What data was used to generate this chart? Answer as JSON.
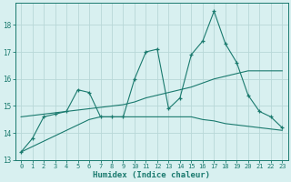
{
  "xlabel": "Humidex (Indice chaleur)",
  "x": [
    0,
    1,
    2,
    3,
    4,
    5,
    6,
    7,
    8,
    9,
    10,
    11,
    12,
    13,
    14,
    15,
    16,
    17,
    18,
    19,
    20,
    21,
    22,
    23
  ],
  "line1": [
    13.3,
    13.8,
    14.6,
    14.7,
    14.8,
    15.6,
    15.5,
    14.6,
    14.6,
    14.6,
    16.0,
    17.0,
    17.1,
    14.9,
    15.3,
    16.9,
    17.4,
    18.5,
    17.3,
    16.6,
    15.4,
    14.8,
    14.6,
    14.2
  ],
  "line2": [
    14.6,
    14.65,
    14.7,
    14.75,
    14.8,
    14.85,
    14.9,
    14.95,
    15.0,
    15.05,
    15.15,
    15.3,
    15.4,
    15.5,
    15.6,
    15.7,
    15.85,
    16.0,
    16.1,
    16.2,
    16.3,
    16.3,
    16.3,
    16.3
  ],
  "line3": [
    13.3,
    13.5,
    13.7,
    13.9,
    14.1,
    14.3,
    14.5,
    14.6,
    14.6,
    14.6,
    14.6,
    14.6,
    14.6,
    14.6,
    14.6,
    14.6,
    14.5,
    14.45,
    14.35,
    14.3,
    14.25,
    14.2,
    14.15,
    14.1
  ],
  "color": "#1a7a6e",
  "bg_color": "#d8f0f0",
  "grid_color": "#b8d8d8",
  "ylim": [
    13.0,
    18.8
  ],
  "yticks": [
    13,
    14,
    15,
    16,
    17,
    18
  ],
  "xticks": [
    0,
    1,
    2,
    3,
    4,
    5,
    6,
    7,
    8,
    9,
    10,
    11,
    12,
    13,
    14,
    15,
    16,
    17,
    18,
    19,
    20,
    21,
    22,
    23
  ]
}
